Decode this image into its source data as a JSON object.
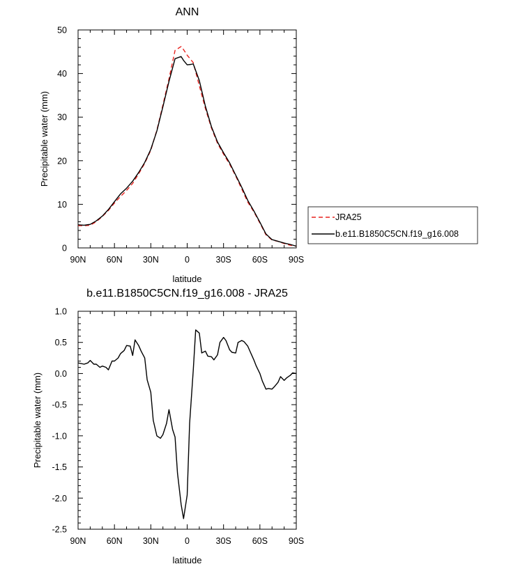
{
  "chart_data": [
    {
      "type": "line",
      "title": "ANN",
      "xlabel": "latitude",
      "ylabel": "Precipitable water (mm)",
      "xlim": [
        90,
        -90
      ],
      "ylim": [
        0,
        50
      ],
      "xticks": [
        90,
        60,
        30,
        0,
        -30,
        -60,
        -90
      ],
      "xtick_labels": [
        "90N",
        "60N",
        "30N",
        "0",
        "30S",
        "60S",
        "90S"
      ],
      "yticks": [
        0,
        10,
        20,
        30,
        40,
        50
      ],
      "ytick_labels": [
        "0",
        "10",
        "20",
        "30",
        "40",
        "50"
      ],
      "legend_position": "right",
      "series": [
        {
          "name": "JRA25",
          "color": "#e8221e",
          "dash": "dashed",
          "x": [
            90,
            85,
            80,
            75,
            70,
            65,
            60,
            55,
            50,
            45,
            40,
            35,
            30,
            25,
            20,
            15,
            10,
            5,
            3,
            0,
            -5,
            -10,
            -15,
            -20,
            -25,
            -30,
            -35,
            -40,
            -45,
            -50,
            -55,
            -60,
            -65,
            -70,
            -75,
            -80,
            -85,
            -90
          ],
          "y": [
            5.1,
            5.1,
            5.2,
            6.0,
            7.2,
            8.6,
            10.3,
            11.8,
            13.2,
            14.8,
            17.0,
            19.4,
            22.4,
            27.0,
            32.8,
            38.8,
            45.3,
            46.2,
            45.5,
            44.2,
            42.5,
            37.2,
            32.0,
            27.5,
            24.0,
            21.5,
            19.2,
            16.5,
            13.5,
            10.5,
            8.3,
            5.7,
            3.0,
            1.8,
            1.5,
            1.0,
            0.6,
            0.4
          ]
        },
        {
          "name": "b.e11.B1850C5CN.f19_g16.008",
          "color": "#000000",
          "dash": "solid",
          "x": [
            90,
            85,
            80,
            75,
            70,
            65,
            60,
            55,
            50,
            45,
            40,
            35,
            30,
            25,
            20,
            15,
            10,
            5,
            3,
            0,
            -3,
            -5,
            -10,
            -15,
            -20,
            -25,
            -30,
            -35,
            -40,
            -45,
            -50,
            -55,
            -60,
            -65,
            -70,
            -75,
            -80,
            -85,
            -90
          ],
          "y": [
            5.3,
            5.2,
            5.4,
            6.2,
            7.3,
            8.8,
            10.6,
            12.4,
            13.7,
            15.3,
            17.3,
            19.6,
            22.6,
            26.8,
            32.4,
            38.2,
            43.4,
            43.9,
            43.0,
            42.0,
            42.1,
            42.2,
            38.4,
            32.5,
            27.8,
            24.3,
            21.8,
            19.5,
            16.7,
            13.9,
            10.9,
            8.5,
            5.9,
            3.2,
            1.9,
            1.5,
            1.1,
            0.8,
            0.4
          ]
        }
      ]
    },
    {
      "type": "line",
      "title": "b.e11.B1850C5CN.f19_g16.008 - JRA25",
      "xlabel": "latitude",
      "ylabel": "Precipitable water (mm)",
      "xlim": [
        90,
        -90
      ],
      "ylim": [
        -2.5,
        1.0
      ],
      "xticks": [
        90,
        60,
        30,
        0,
        -30,
        -60,
        -90
      ],
      "xtick_labels": [
        "90N",
        "60N",
        "30N",
        "0",
        "30S",
        "60S",
        "90S"
      ],
      "yticks": [
        -2.5,
        -2.0,
        -1.5,
        -1.0,
        -0.5,
        0.0,
        0.5,
        1.0
      ],
      "ytick_labels": [
        "-2.5",
        "-2.0",
        "-1.5",
        "-1.0",
        "-0.5",
        "0.0",
        "0.5",
        "1.0"
      ],
      "series": [
        {
          "color": "#000000",
          "dash": "solid",
          "x": [
            90,
            85,
            82,
            80,
            77,
            75,
            72,
            70,
            67,
            65,
            62,
            60,
            57,
            55,
            52,
            50,
            47,
            45,
            43,
            40,
            38,
            35,
            33,
            30,
            28,
            25,
            22,
            20,
            17,
            15,
            12,
            10,
            8,
            5,
            3,
            0,
            -2,
            -5,
            -7,
            -10,
            -12,
            -15,
            -17,
            -20,
            -22,
            -25,
            -27,
            -30,
            -32,
            -35,
            -37,
            -40,
            -42,
            -45,
            -47,
            -50,
            -52,
            -55,
            -57,
            -60,
            -62,
            -65,
            -67,
            -70,
            -72,
            -75,
            -77,
            -80,
            -82,
            -85,
            -87,
            -90
          ],
          "y": [
            0.17,
            0.15,
            0.17,
            0.21,
            0.15,
            0.15,
            0.1,
            0.12,
            0.1,
            0.06,
            0.2,
            0.2,
            0.25,
            0.32,
            0.37,
            0.45,
            0.44,
            0.29,
            0.54,
            0.45,
            0.36,
            0.25,
            -0.1,
            -0.3,
            -0.75,
            -1.0,
            -1.04,
            -0.98,
            -0.8,
            -0.58,
            -0.9,
            -1.02,
            -1.6,
            -2.1,
            -2.33,
            -1.95,
            -0.8,
            0.05,
            0.7,
            0.65,
            0.33,
            0.36,
            0.28,
            0.27,
            0.22,
            0.3,
            0.5,
            0.58,
            0.53,
            0.38,
            0.34,
            0.33,
            0.5,
            0.53,
            0.51,
            0.44,
            0.35,
            0.22,
            0.12,
            0.0,
            -0.12,
            -0.25,
            -0.24,
            -0.25,
            -0.21,
            -0.14,
            -0.05,
            -0.11,
            -0.07,
            -0.03,
            0.01,
            0.0
          ]
        }
      ]
    }
  ]
}
